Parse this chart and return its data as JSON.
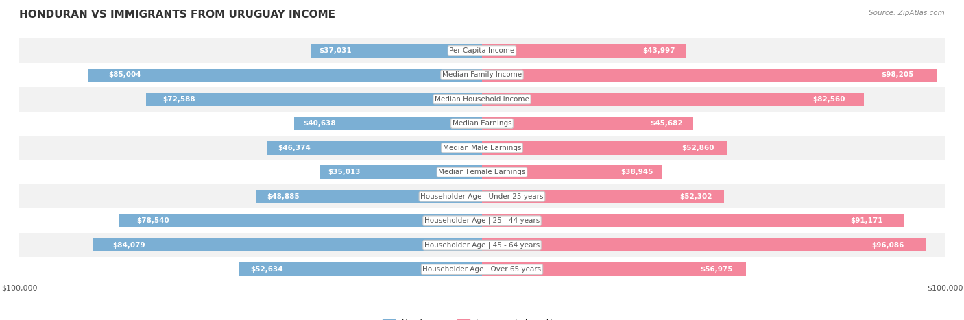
{
  "title": "HONDURAN VS IMMIGRANTS FROM URUGUAY INCOME",
  "source": "Source: ZipAtlas.com",
  "categories": [
    "Per Capita Income",
    "Median Family Income",
    "Median Household Income",
    "Median Earnings",
    "Median Male Earnings",
    "Median Female Earnings",
    "Householder Age | Under 25 years",
    "Householder Age | 25 - 44 years",
    "Householder Age | 45 - 64 years",
    "Householder Age | Over 65 years"
  ],
  "honduran_values": [
    37031,
    85004,
    72588,
    40638,
    46374,
    35013,
    48885,
    78540,
    84079,
    52634
  ],
  "uruguay_values": [
    43997,
    98205,
    82560,
    45682,
    52860,
    38945,
    52302,
    91171,
    96086,
    56975
  ],
  "honduran_labels": [
    "$37,031",
    "$85,004",
    "$72,588",
    "$40,638",
    "$46,374",
    "$35,013",
    "$48,885",
    "$78,540",
    "$84,079",
    "$52,634"
  ],
  "uruguay_labels": [
    "$43,997",
    "$98,205",
    "$82,560",
    "$45,682",
    "$52,860",
    "$38,945",
    "$52,302",
    "$91,171",
    "$96,086",
    "$56,975"
  ],
  "max_value": 100000,
  "honduran_color": "#7bafd4",
  "uruguay_color": "#f4879c",
  "honduran_label_color_inside": "#ffffff",
  "uruguay_label_color_inside": "#ffffff",
  "honduran_label_color_outside": "#555555",
  "uruguay_label_color_outside": "#555555",
  "legend_honduran": "Honduran",
  "legend_uruguay": "Immigrants from Uruguay",
  "bar_height": 0.55,
  "row_bg_color_even": "#f2f2f2",
  "row_bg_color_odd": "#ffffff",
  "category_box_color": "#ffffff",
  "category_text_color": "#555555",
  "axis_label_color": "#555555",
  "title_color": "#333333",
  "inside_label_threshold": 20000
}
